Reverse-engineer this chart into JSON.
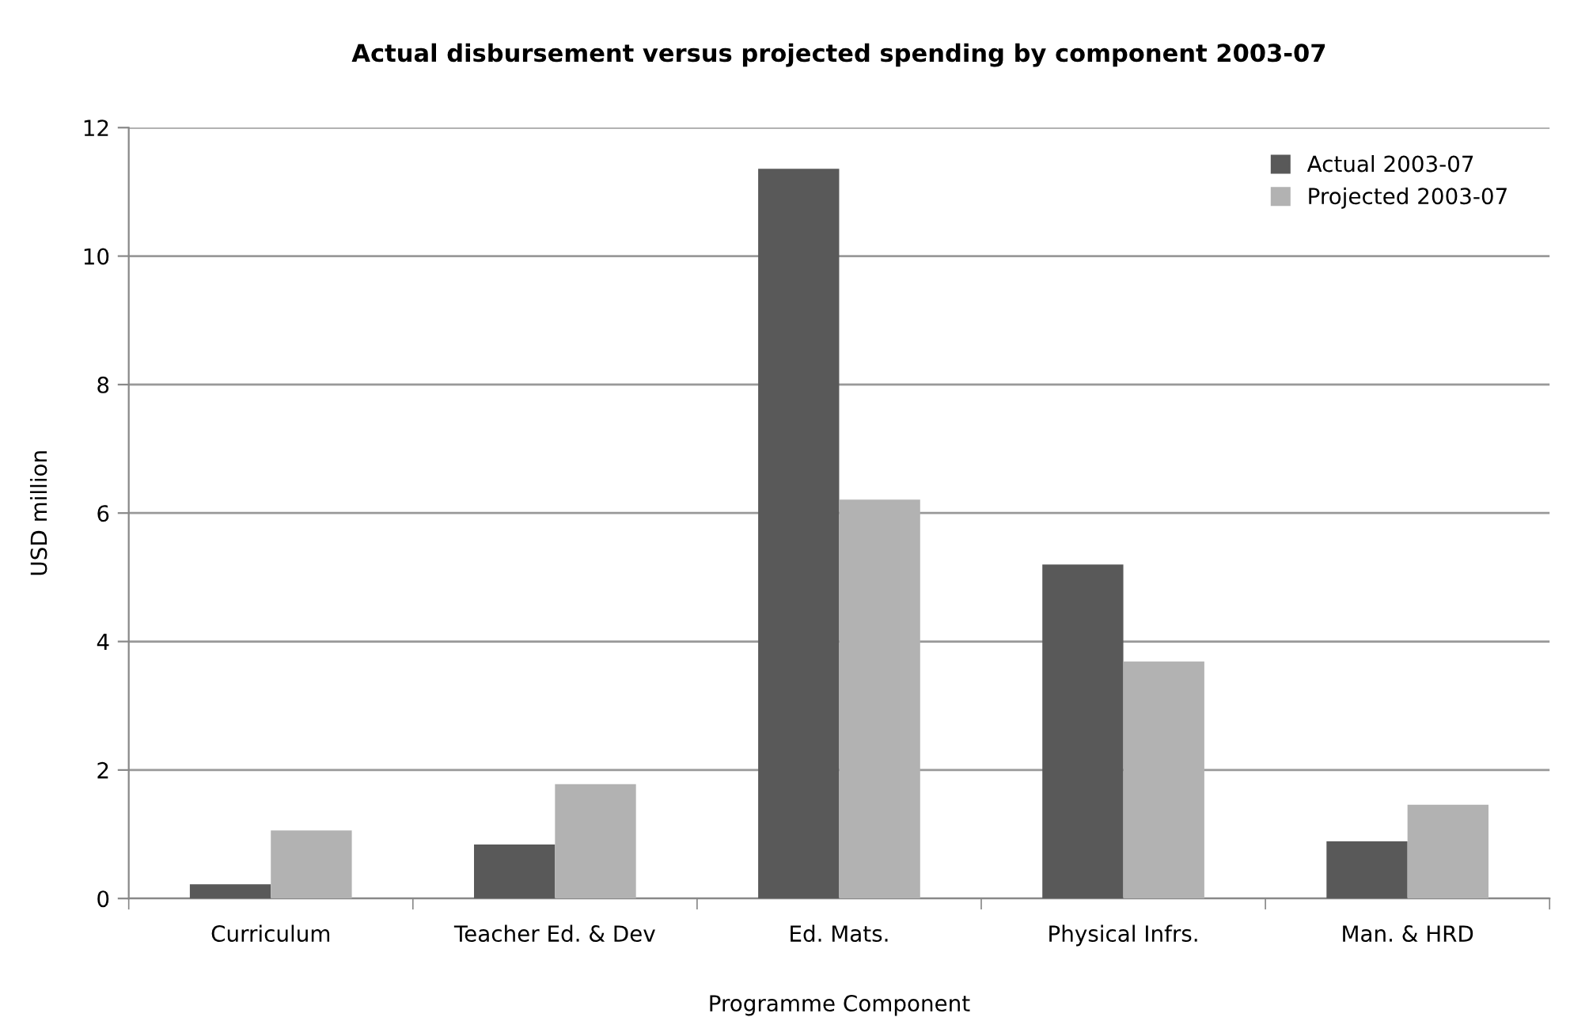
{
  "chart_data": {
    "type": "bar",
    "title": "Actual disbursement versus projected spending by component 2003-07",
    "xlabel": "Programme Component",
    "ylabel": "USD million",
    "categories": [
      "Curriculum",
      "Teacher Ed. & Dev",
      "Ed. Mats.",
      "Physical Infrs.",
      "Man. & HRD"
    ],
    "series": [
      {
        "name": "Actual 2003-07",
        "color": "#595959",
        "values": [
          0.22,
          0.84,
          11.36,
          5.2,
          0.89
        ]
      },
      {
        "name": "Projected 2003-07",
        "color": "#b2b2b2",
        "values": [
          1.06,
          1.78,
          6.21,
          3.69,
          1.46
        ]
      }
    ],
    "ylim": [
      0,
      12
    ],
    "yticks": [
      0,
      2,
      4,
      6,
      8,
      10,
      12
    ],
    "grid": "y",
    "legend": "top right"
  }
}
